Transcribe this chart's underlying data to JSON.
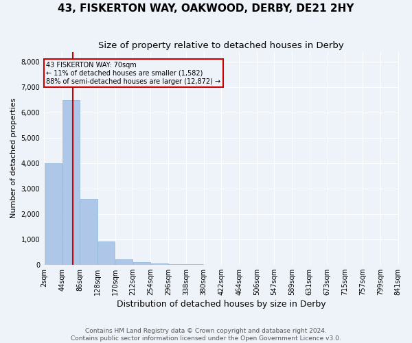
{
  "title": "43, FISKERTON WAY, OAKWOOD, DERBY, DE21 2HY",
  "subtitle": "Size of property relative to detached houses in Derby",
  "xlabel": "Distribution of detached houses by size in Derby",
  "ylabel": "Number of detached properties",
  "bar_color": "#aec6e8",
  "bar_edge_color": "#8ab4d8",
  "background_color": "#eef2f9",
  "property_size": 70,
  "property_line_color": "#cc0000",
  "annotation_text": "43 FISKERTON WAY: 70sqm\n← 11% of detached houses are smaller (1,582)\n88% of semi-detached houses are larger (12,872) →",
  "annotation_box_color": "#cc0000",
  "bin_edges": [
    2,
    44,
    86,
    128,
    170,
    212,
    254,
    296,
    338,
    380,
    422,
    464,
    506,
    547,
    589,
    631,
    673,
    715,
    757,
    799,
    841
  ],
  "bar_heights": [
    4000,
    6500,
    2600,
    900,
    200,
    100,
    50,
    20,
    10,
    5,
    3,
    2,
    1,
    1,
    0,
    0,
    0,
    0,
    0,
    0
  ],
  "ylim": [
    0,
    8400
  ],
  "yticks": [
    0,
    1000,
    2000,
    3000,
    4000,
    5000,
    6000,
    7000,
    8000
  ],
  "footer_text": "Contains HM Land Registry data © Crown copyright and database right 2024.\nContains public sector information licensed under the Open Government Licence v3.0.",
  "title_fontsize": 11,
  "subtitle_fontsize": 9.5,
  "xlabel_fontsize": 9,
  "ylabel_fontsize": 8,
  "tick_fontsize": 7,
  "footer_fontsize": 6.5
}
